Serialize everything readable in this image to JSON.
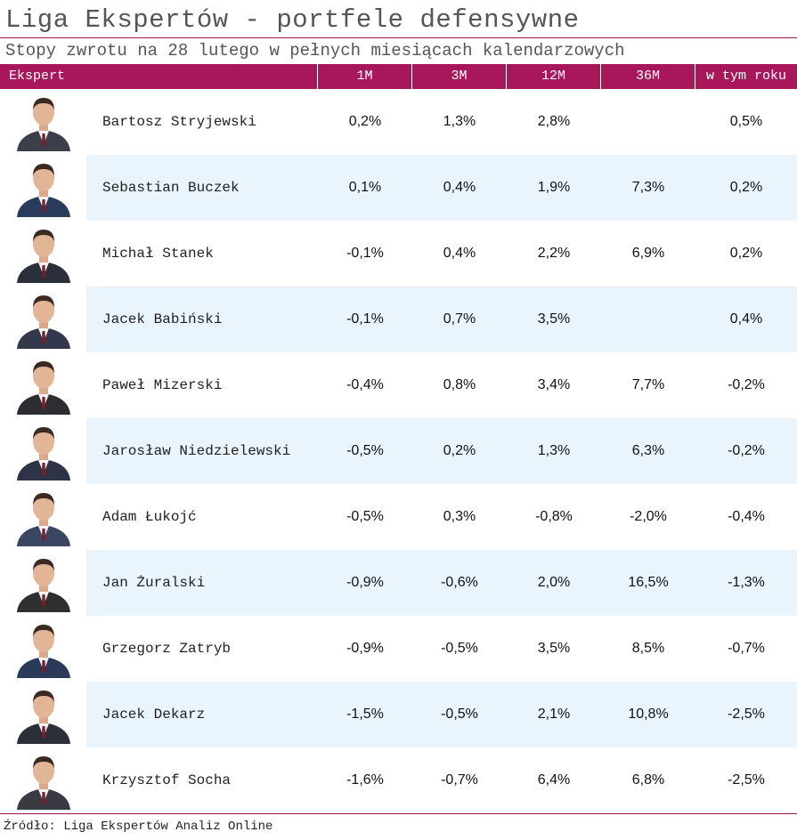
{
  "title": "Liga Ekspertów - portfele defensywne",
  "subtitle": "Stopy zwrotu na 28 lutego w pełnych miesiącach kalendarzowych",
  "columns": [
    "Ekspert",
    "1M",
    "3M",
    "12M",
    "36M",
    "w tym roku"
  ],
  "colors": {
    "accent": "#a8175a",
    "row_alt": "#e9f4fc"
  },
  "rows": [
    {
      "name": "Bartosz Stryjewski",
      "m1": "0,2%",
      "m3": "1,3%",
      "m12": "2,8%",
      "m36": "",
      "ytd": "0,5%"
    },
    {
      "name": "Sebastian Buczek",
      "m1": "0,1%",
      "m3": "0,4%",
      "m12": "1,9%",
      "m36": "7,3%",
      "ytd": "0,2%"
    },
    {
      "name": "Michał Stanek",
      "m1": "-0,1%",
      "m3": "0,4%",
      "m12": "2,2%",
      "m36": "6,9%",
      "ytd": "0,2%"
    },
    {
      "name": "Jacek Babiński",
      "m1": "-0,1%",
      "m3": "0,7%",
      "m12": "3,5%",
      "m36": "",
      "ytd": "0,4%"
    },
    {
      "name": "Paweł Mizerski",
      "m1": "-0,4%",
      "m3": "0,8%",
      "m12": "3,4%",
      "m36": "7,7%",
      "ytd": "-0,2%"
    },
    {
      "name": "Jarosław Niedzielewski",
      "m1": "-0,5%",
      "m3": "0,2%",
      "m12": "1,3%",
      "m36": "6,3%",
      "ytd": "-0,2%"
    },
    {
      "name": "Adam Łukojć",
      "m1": "-0,5%",
      "m3": "0,3%",
      "m12": "-0,8%",
      "m36": "-2,0%",
      "ytd": "-0,4%"
    },
    {
      "name": "Jan Żuralski",
      "m1": "-0,9%",
      "m3": "-0,6%",
      "m12": "2,0%",
      "m36": "16,5%",
      "ytd": "-1,3%"
    },
    {
      "name": "Grzegorz Zatryb",
      "m1": "-0,9%",
      "m3": "-0,5%",
      "m12": "3,5%",
      "m36": "8,5%",
      "ytd": "-0,7%"
    },
    {
      "name": "Jacek Dekarz",
      "m1": "-1,5%",
      "m3": "-0,5%",
      "m12": "2,1%",
      "m36": "10,8%",
      "ytd": "-2,5%"
    },
    {
      "name": "Krzysztof Socha",
      "m1": "-1,6%",
      "m3": "-0,7%",
      "m12": "6,4%",
      "m36": "6,8%",
      "ytd": "-2,5%"
    }
  ],
  "source": "Źródło: Liga Ekspertów Analiz Online"
}
